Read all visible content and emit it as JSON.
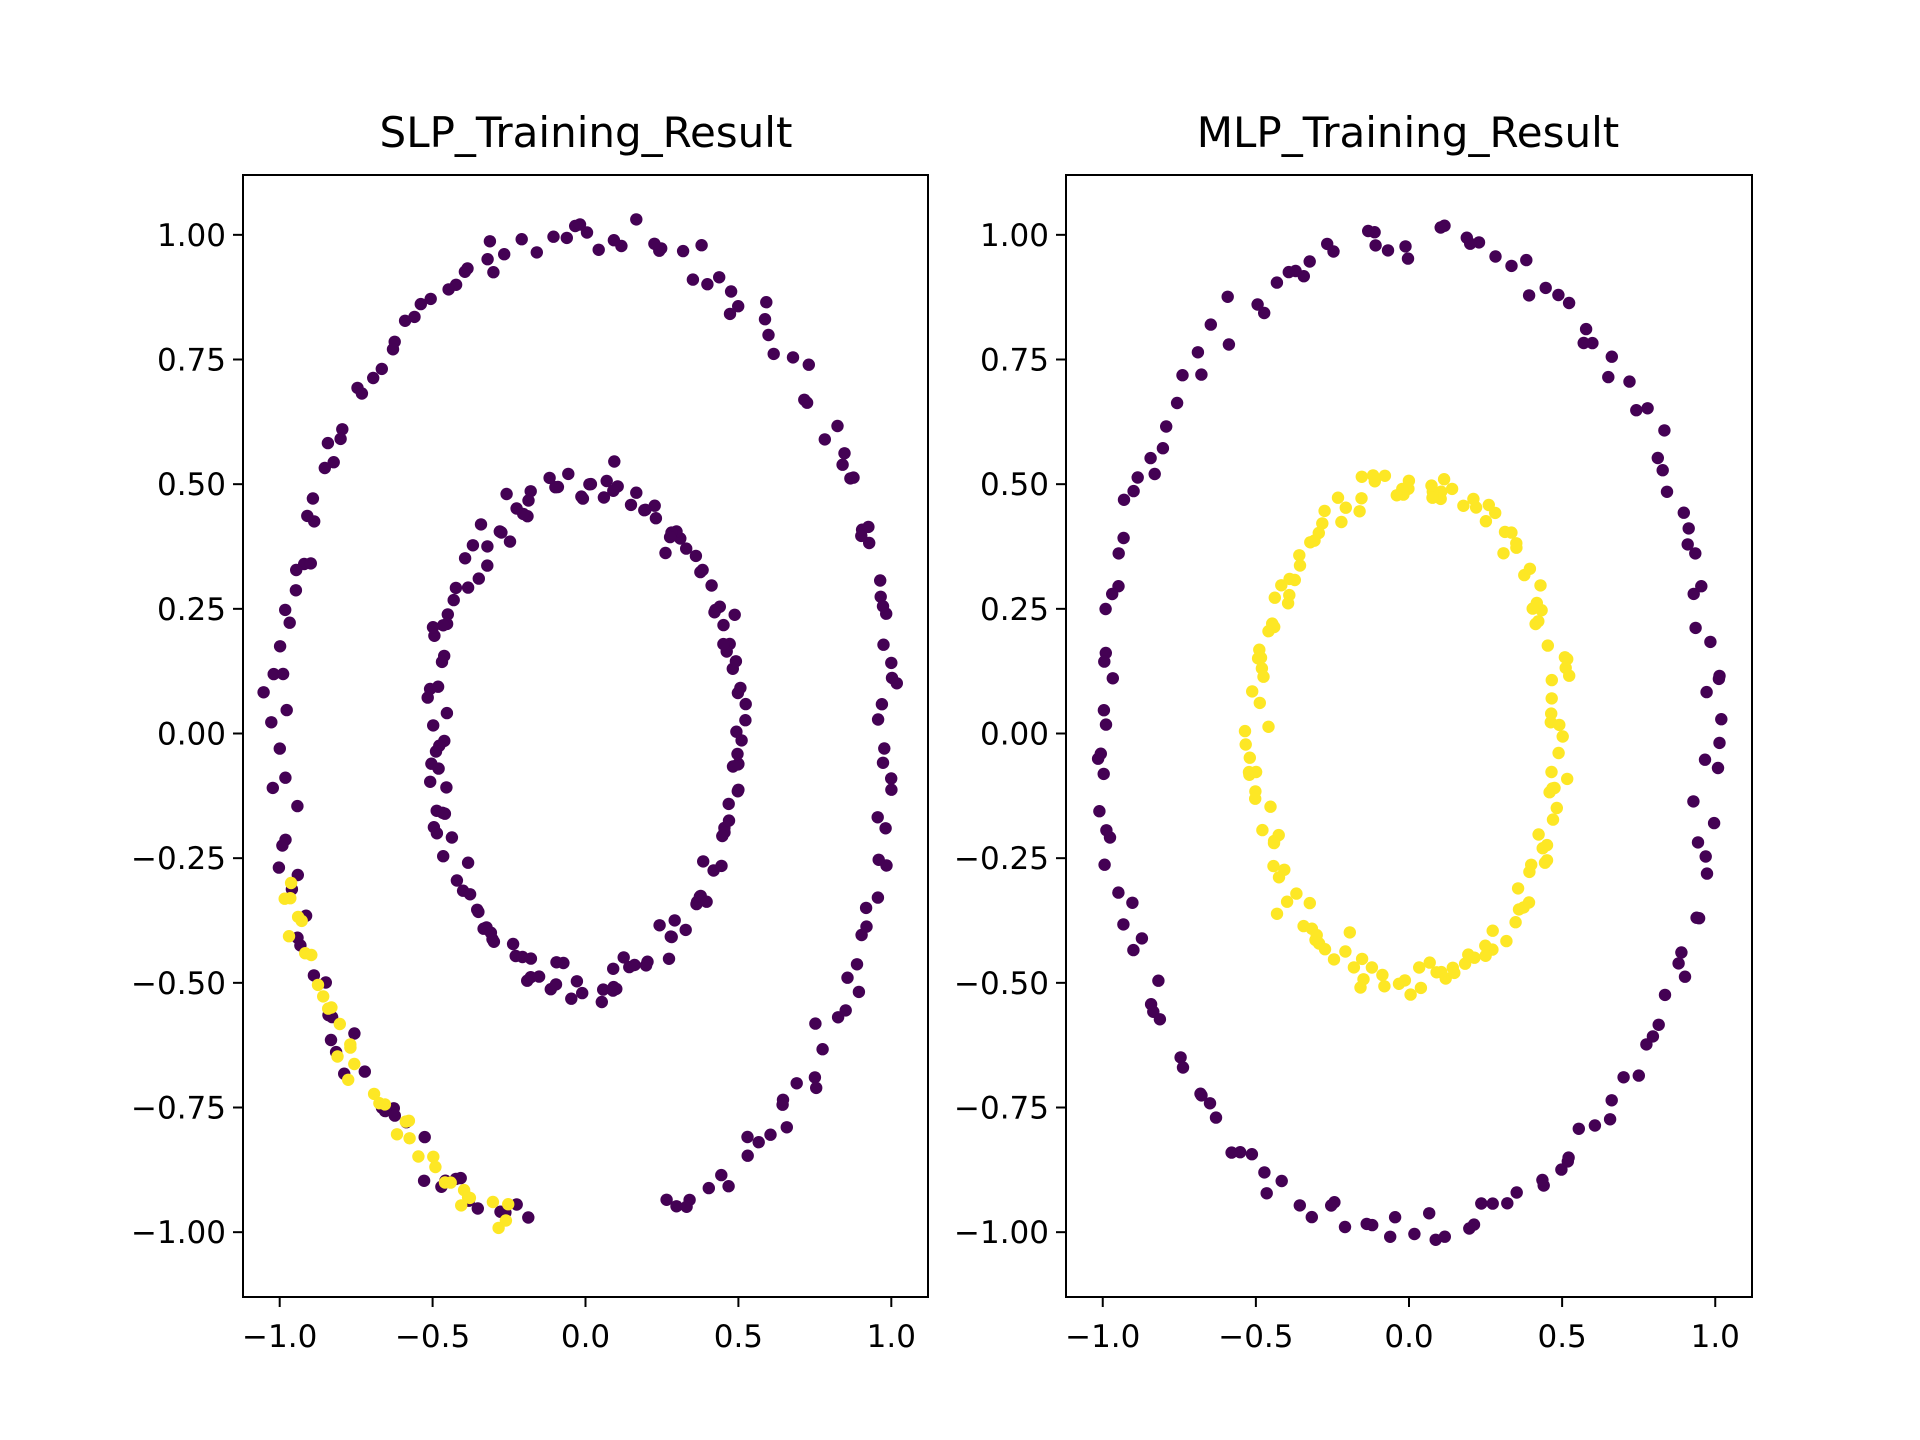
{
  "colors": {
    "class_0": "#440154",
    "class_1": "#fde725",
    "axes": "#000000",
    "background": "#ffffff"
  },
  "chart_data": [
    {
      "type": "scatter",
      "title": "SLP_Training_Result",
      "xlabel": "",
      "ylabel": "",
      "xlim": [
        -1.12,
        1.12
      ],
      "ylim": [
        -1.13,
        1.12
      ],
      "xticks": [
        -1.0,
        -0.5,
        0.0,
        0.5,
        1.0
      ],
      "xtick_labels": [
        "−1.0",
        "−0.5",
        "0.0",
        "0.5",
        "1.0"
      ],
      "yticks": [
        1.0,
        0.75,
        0.5,
        0.25,
        0.0,
        -0.25,
        -0.5,
        -0.75,
        -1.0
      ],
      "ytick_labels": [
        "1.00",
        "0.75",
        "0.50",
        "0.25",
        "0.00",
        "−0.25",
        "−0.50",
        "−0.75",
        "−1.00"
      ],
      "grid": false,
      "legend": "none",
      "series": [
        {
          "color": "#440154",
          "rings": [
            {
              "radius": 1.0,
              "angle_start": 90,
              "angle_end": 260,
              "count": 82,
              "noise": 0.02
            },
            {
              "radius": 1.0,
              "angle_start": -75,
              "angle_end": 90,
              "count": 80,
              "noise": 0.02
            },
            {
              "radius": 0.5,
              "angle_start": 0,
              "angle_end": 360,
              "count": 150,
              "noise": 0.02
            }
          ]
        },
        {
          "color": "#fde725",
          "rings": [
            {
              "radius": 1.0,
              "angle_start": 195,
              "angle_end": 258,
              "count": 38,
              "noise": 0.02
            }
          ]
        }
      ]
    },
    {
      "type": "scatter",
      "title": "MLP_Training_Result",
      "xlabel": "",
      "ylabel": "",
      "xlim": [
        -1.12,
        1.12
      ],
      "ylim": [
        -1.13,
        1.12
      ],
      "xticks": [
        -1.0,
        -0.5,
        0.0,
        0.5,
        1.0
      ],
      "xtick_labels": [
        "−1.0",
        "−0.5",
        "0.0",
        "0.5",
        "1.0"
      ],
      "yticks": [
        1.0,
        0.75,
        0.5,
        0.25,
        0.0,
        -0.25,
        -0.5,
        -0.75,
        -1.0
      ],
      "ytick_labels": [
        "1.00",
        "0.75",
        "0.50",
        "0.25",
        "0.00",
        "−0.25",
        "−0.50",
        "−0.75",
        "−1.00"
      ],
      "grid": false,
      "legend": "none",
      "series": [
        {
          "color": "#440154",
          "rings": [
            {
              "radius": 1.0,
              "angle_start": 0,
              "angle_end": 360,
              "count": 150,
              "noise": 0.02
            }
          ]
        },
        {
          "color": "#fde725",
          "rings": [
            {
              "radius": 0.5,
              "angle_start": 0,
              "angle_end": 360,
              "count": 150,
              "noise": 0.02
            }
          ]
        }
      ]
    }
  ]
}
